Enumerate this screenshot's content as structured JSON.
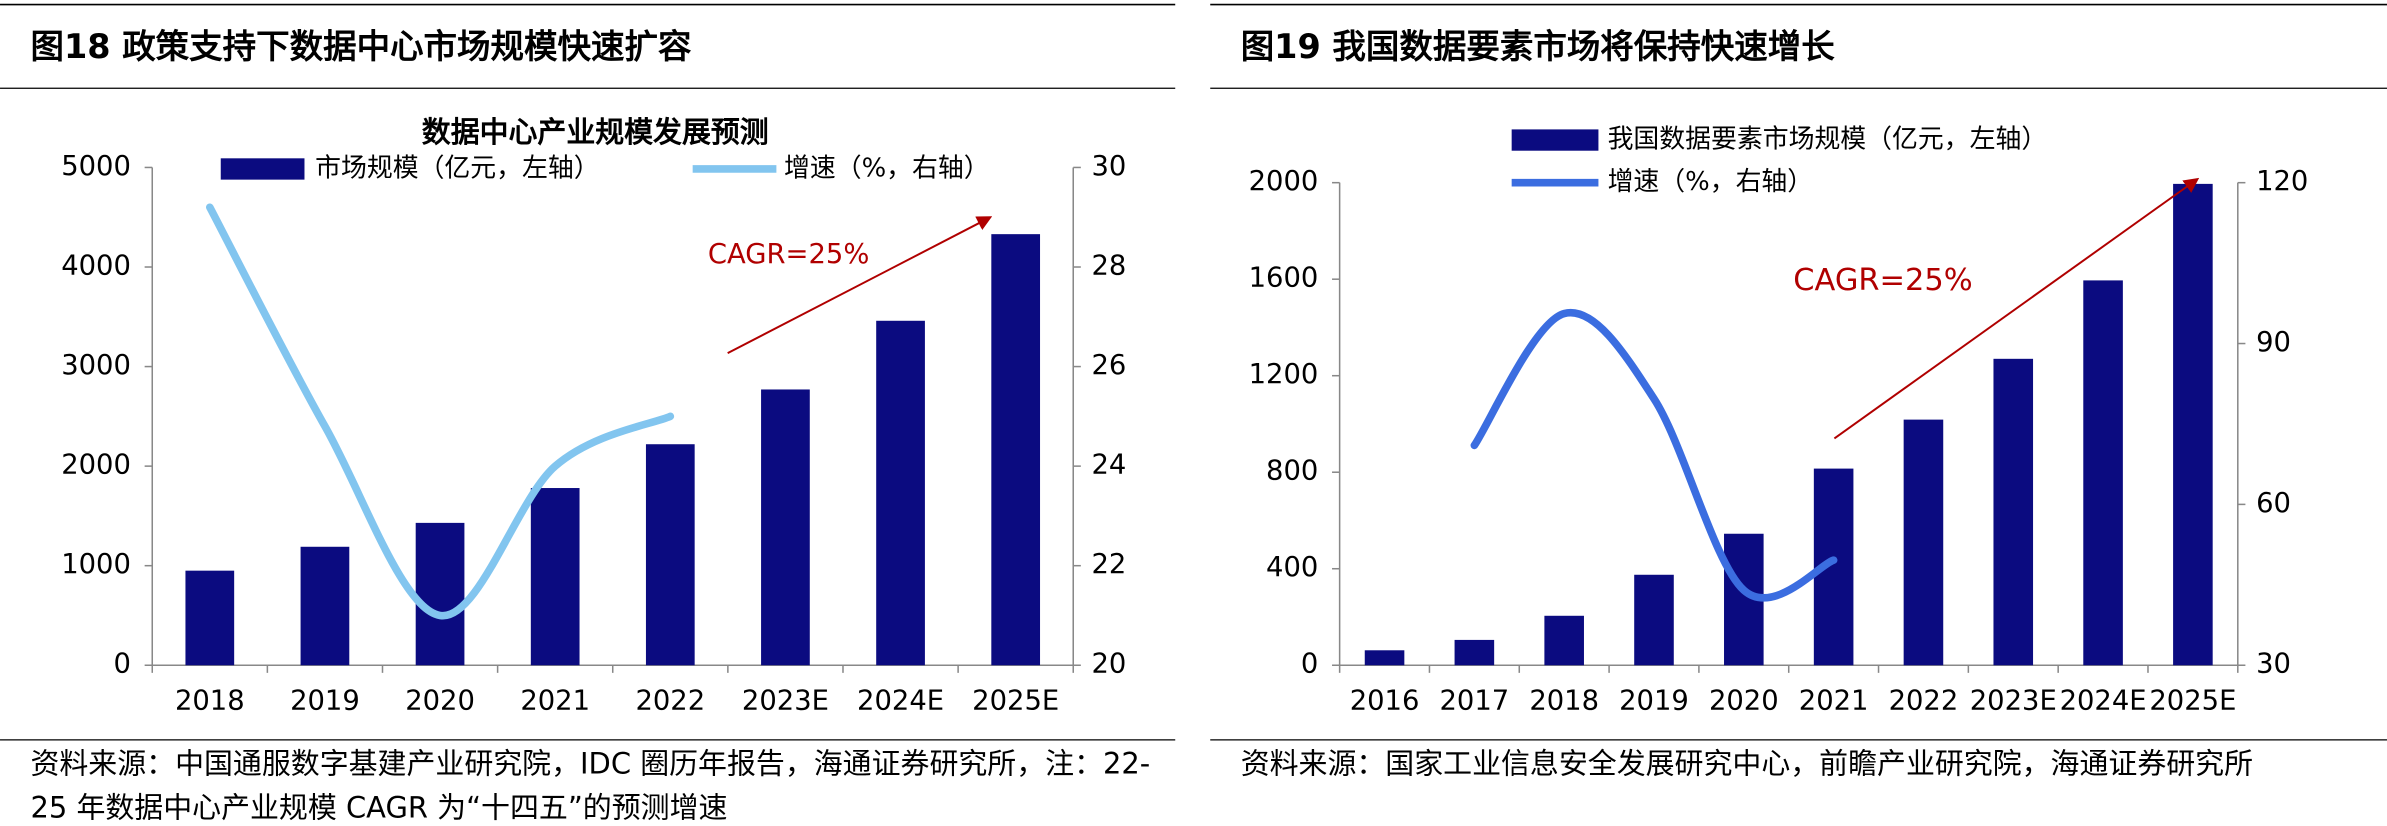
{
  "chart_data": [
    {
      "type": "bar",
      "figure_title": "图18 政策支持下数据中心市场规模快速扩容",
      "title": "数据中心产业规模发展预测",
      "categories": [
        "2018",
        "2019",
        "2020",
        "2021",
        "2022",
        "2023E",
        "2024E",
        "2025E"
      ],
      "series": [
        {
          "name": "市场规模（亿元，左轴）",
          "color": "#0b0b80",
          "values": [
            950,
            1190,
            1430,
            1780,
            2220,
            2770,
            3460,
            4330
          ]
        },
        {
          "name": "增速（%，右轴）",
          "type": "line",
          "axis": "y2",
          "color": "#82c5ef",
          "values": [
            29.2,
            24.8,
            21.0,
            24.0,
            25.0,
            null,
            null,
            null
          ]
        }
      ],
      "ylim": [
        0,
        5000
      ],
      "yticks": [
        0,
        1000,
        2000,
        3000,
        4000,
        5000
      ],
      "y2lim": [
        20,
        30
      ],
      "y2ticks": [
        20,
        22,
        24,
        26,
        28,
        30
      ],
      "annotation": "CAGR=25%",
      "source": "资料来源：中国通服数字基建产业研究院，IDC 圈历年报告，海通证券研究所，注：22-25 年数据中心产业规模 CAGR 为“十四五”的预测增速"
    },
    {
      "type": "bar",
      "figure_title": "图19 我国数据要素市场将保持快速增长",
      "categories": [
        "2016",
        "2017",
        "2018",
        "2019",
        "2020",
        "2021",
        "2022",
        "2023E",
        "2024E",
        "2025E"
      ],
      "series": [
        {
          "name": "我国数据要素市场规模（亿元，左轴）",
          "color": "#0b0b80",
          "values": [
            62,
            105,
            205,
            375,
            545,
            815,
            1018,
            1270,
            1595,
            1995
          ]
        },
        {
          "name": "增速（%，右轴）",
          "type": "line",
          "axis": "y2",
          "color": "#3b6de0",
          "values": [
            null,
            71,
            95.6,
            79.7,
            44,
            49.6,
            null,
            null,
            null,
            null
          ]
        }
      ],
      "ylim": [
        0,
        2000
      ],
      "yticks": [
        0,
        400,
        800,
        1200,
        1600,
        2000
      ],
      "y2lim": [
        30,
        120
      ],
      "y2ticks": [
        30,
        60,
        90,
        120
      ],
      "annotation": "CAGR=25%",
      "source": "资料来源：国家工业信息安全发展研究中心，前瞻产业研究院，海通证券研究所"
    }
  ]
}
